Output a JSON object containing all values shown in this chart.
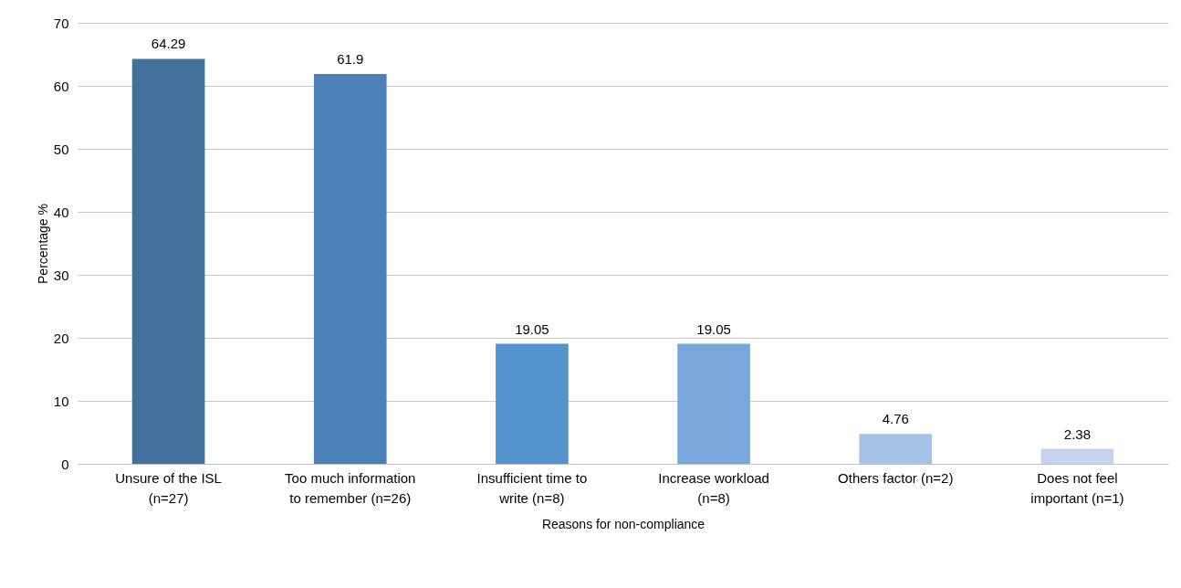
{
  "chart_data": {
    "type": "bar",
    "xlabel": "Reasons for non-compliance",
    "ylabel": "Percentage %",
    "categories": [
      "Unsure of the ISL (n=27)",
      "Too much information to remember (n=26)",
      "Insufficient time to write (n=8)",
      "Increase workload (n=8)",
      "Others factor (n=2)",
      "Does not feel important (n=1)"
    ],
    "values": [
      64.29,
      61.9,
      19.05,
      19.05,
      4.76,
      2.38
    ],
    "colors": [
      "#41719c",
      "#4a81b7",
      "#5593cf",
      "#7aa7db",
      "#a6c2e6",
      "#c3d5ee"
    ],
    "ylim": [
      0,
      70
    ],
    "yticks": [
      0,
      10,
      20,
      30,
      40,
      50,
      60,
      70
    ],
    "grid": "y",
    "data_labels": true
  }
}
